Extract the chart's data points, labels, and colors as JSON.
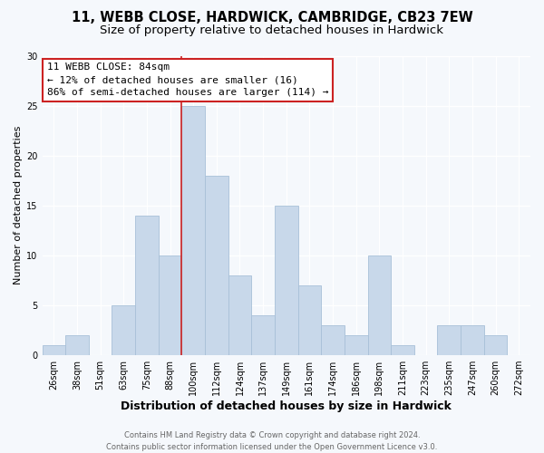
{
  "title_line1": "11, WEBB CLOSE, HARDWICK, CAMBRIDGE, CB23 7EW",
  "title_line2": "Size of property relative to detached houses in Hardwick",
  "xlabel": "Distribution of detached houses by size in Hardwick",
  "ylabel": "Number of detached properties",
  "bar_labels": [
    "26sqm",
    "38sqm",
    "51sqm",
    "63sqm",
    "75sqm",
    "88sqm",
    "100sqm",
    "112sqm",
    "124sqm",
    "137sqm",
    "149sqm",
    "161sqm",
    "174sqm",
    "186sqm",
    "198sqm",
    "211sqm",
    "223sqm",
    "235sqm",
    "247sqm",
    "260sqm",
    "272sqm"
  ],
  "bar_values": [
    1,
    2,
    0,
    5,
    14,
    10,
    25,
    18,
    8,
    4,
    15,
    7,
    3,
    2,
    10,
    1,
    0,
    3,
    3,
    2,
    0
  ],
  "bar_color": "#c8d8ea",
  "bar_edge_color": "#a8c0d8",
  "annotation_label": "11 WEBB CLOSE: 84sqm",
  "annotation_line1": "← 12% of detached houses are smaller (16)",
  "annotation_line2": "86% of semi-detached houses are larger (114) →",
  "annotation_box_facecolor": "white",
  "annotation_box_edgecolor": "#cc2222",
  "ref_line_color": "#cc2222",
  "ref_line_x": 5.5,
  "ylim": [
    0,
    30
  ],
  "yticks": [
    0,
    5,
    10,
    15,
    20,
    25,
    30
  ],
  "footer_line1": "Contains HM Land Registry data © Crown copyright and database right 2024.",
  "footer_line2": "Contains public sector information licensed under the Open Government Licence v3.0.",
  "fig_bg_color": "#f5f8fc",
  "plot_bg_color": "#f5f8fc",
  "grid_color": "white",
  "title_fontsize": 10.5,
  "subtitle_fontsize": 9.5,
  "ylabel_fontsize": 8,
  "xlabel_fontsize": 9,
  "tick_fontsize": 7,
  "annotation_fontsize": 8,
  "footer_fontsize": 6
}
